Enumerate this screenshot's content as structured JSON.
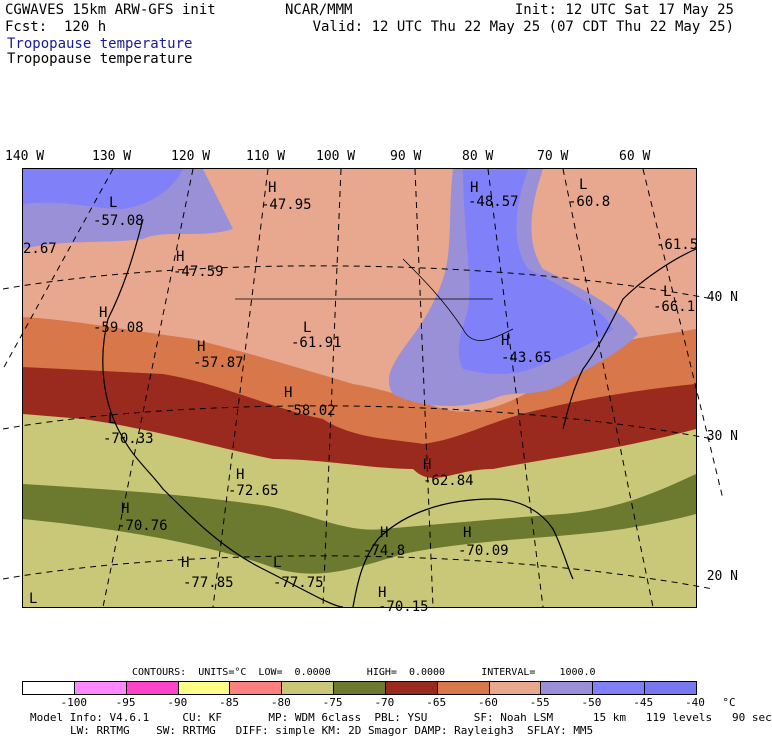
{
  "header": {
    "line1_left": "CGWAVES 15km ARW-GFS init",
    "line1_center": "NCAR/MMM",
    "line1_right": "Init: 12 UTC Sat 17 May 25",
    "line2_left": "Fcst:  120 h",
    "line2_right": "Valid: 12 UTC Thu 22 May 25 (07 CDT Thu 22 May 25)",
    "field_colored": "Tropopause temperature",
    "field_black": "Tropopause temperature"
  },
  "lon_labels": [
    "140 W",
    "130 W",
    "120 W",
    "110 W",
    "100 W",
    "90 W",
    "80 W",
    "70 W",
    "60 W"
  ],
  "lat_labels": [
    "40 N",
    "30 N",
    "20 N"
  ],
  "map_labels": [
    {
      "letter": "H",
      "value": "-47.95"
    },
    {
      "letter": "H",
      "value": "-48.57"
    },
    {
      "letter": "L",
      "value": "-60.8"
    },
    {
      "letter": "L",
      "value": "-57.08"
    },
    {
      "letter": "",
      "value": "2.67"
    },
    {
      "letter": "H",
      "value": "-47.59"
    },
    {
      "letter": "",
      "value": "-61.5"
    },
    {
      "letter": "L",
      "value": "-66.1"
    },
    {
      "letter": "H",
      "value": "-59.08"
    },
    {
      "letter": "L",
      "value": "-61.91"
    },
    {
      "letter": "H",
      "value": "-43.65"
    },
    {
      "letter": "H",
      "value": "-57.87"
    },
    {
      "letter": "H",
      "value": "-58.02"
    },
    {
      "letter": "L",
      "value": "-70.33"
    },
    {
      "letter": "H",
      "value": "-72.65"
    },
    {
      "letter": "H",
      "value": "-62.84"
    },
    {
      "letter": "H",
      "value": "-70.76"
    },
    {
      "letter": "H",
      "value": "-74.8"
    },
    {
      "letter": "H",
      "value": "-70.09"
    },
    {
      "letter": "H",
      "value": "-77.85"
    },
    {
      "letter": "L",
      "value": "-77.75"
    },
    {
      "letter": "H",
      "value": "-70.15"
    },
    {
      "letter": "L",
      "value": ""
    }
  ],
  "contours_line": "CONTOURS:  UNITS=°C  LOW=  0.0000      HIGH=  0.0000      INTERVAL=    1000.0",
  "colorbar": {
    "colors": [
      "#ffffff",
      "#ff88ff",
      "#ff44cc",
      "#ffff88",
      "#ff8080",
      "#c8c878",
      "#6b7a2e",
      "#9a2a1e",
      "#d8784a",
      "#e8a890",
      "#9a90d8",
      "#8080f8",
      "#7878f0"
    ],
    "labels": [
      "-100",
      "-95",
      "-90",
      "-85",
      "-80",
      "-75",
      "-70",
      "-65",
      "-60",
      "-55",
      "-50",
      "-45",
      "-40",
      "°C"
    ]
  },
  "footer": {
    "line1": "Model Info: V4.6.1     CU: KF       MP: WDM 6class  PBL: YSU       SF: Noah LSM      15 km   119 levels   90 sec",
    "line2": "LW: RRTMG    SW: RRTMG   DIFF: simple KM: 2D Smagor DAMP: Rayleigh3  SFLAY: MM5"
  }
}
